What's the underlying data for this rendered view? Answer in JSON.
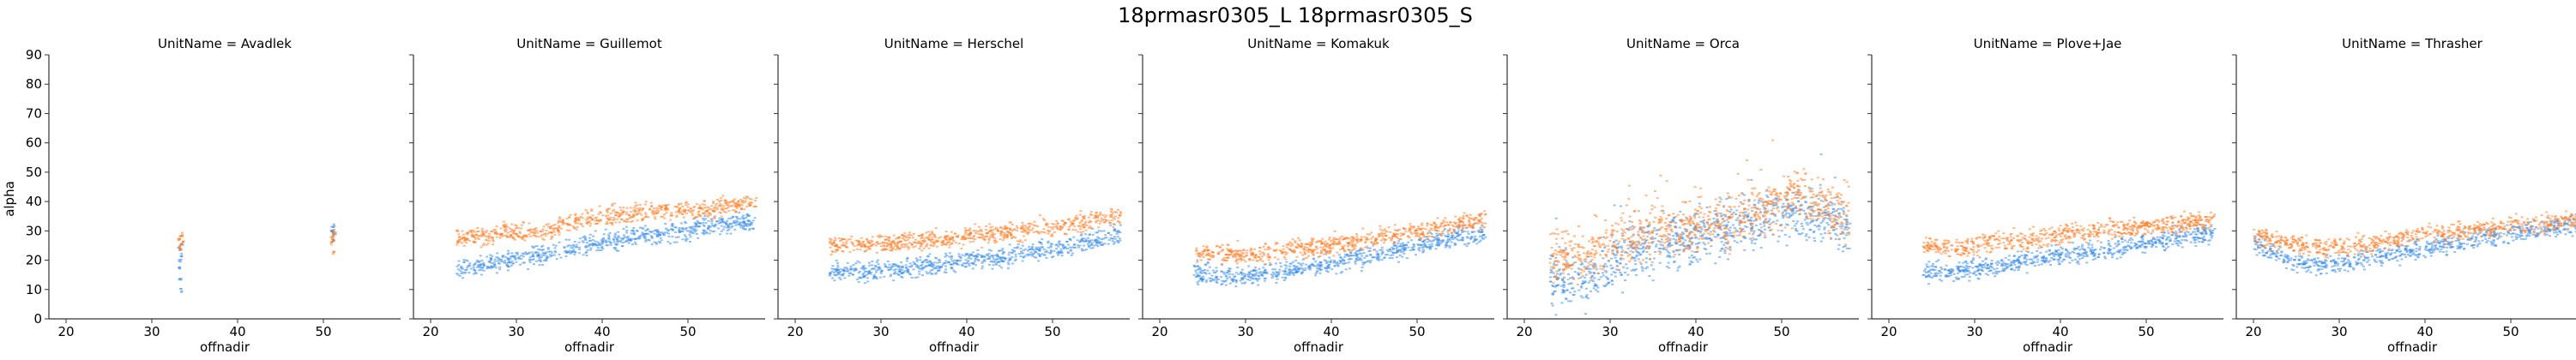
{
  "chart_data": {
    "type": "scatter",
    "title": "18prmasr0305_L 18prmasr0305_S",
    "xlabel": "offnadir",
    "ylabel": "alpha",
    "xlim": [
      18,
      59
    ],
    "ylim": [
      0,
      90
    ],
    "xticks": [
      20,
      30,
      40,
      50
    ],
    "yticks": [
      0,
      10,
      20,
      30,
      40,
      50,
      60,
      70,
      80,
      90
    ],
    "grid": false,
    "legend": "none",
    "series_colors": {
      "L": "#ff7f2a",
      "S": "#3a8de8"
    },
    "panels": [
      {
        "title": "UnitName = Avadlek",
        "L": [
          [
            33.2,
            27
          ],
          [
            33.4,
            28
          ],
          [
            33.6,
            26
          ],
          [
            33.3,
            25
          ],
          [
            33.5,
            29
          ],
          [
            33.4,
            24
          ],
          [
            51.0,
            28
          ],
          [
            51.2,
            29
          ],
          [
            51.1,
            27
          ],
          [
            51.3,
            30
          ],
          [
            51.0,
            26
          ],
          [
            51.2,
            23
          ]
        ],
        "S": [
          [
            33.2,
            24
          ],
          [
            33.4,
            22
          ],
          [
            33.3,
            20
          ],
          [
            33.5,
            26
          ],
          [
            33.3,
            14
          ],
          [
            33.4,
            10
          ],
          [
            33.2,
            18
          ],
          [
            51.0,
            31
          ],
          [
            51.2,
            32
          ],
          [
            51.1,
            30
          ],
          [
            51.3,
            29
          ],
          [
            51.1,
            27
          ]
        ]
      },
      {
        "title": "UnitName = Guillemot",
        "L": [
          [
            23,
            28
          ],
          [
            26,
            28
          ],
          [
            29,
            30
          ],
          [
            32,
            29
          ],
          [
            35,
            31
          ],
          [
            38,
            34
          ],
          [
            41,
            35
          ],
          [
            44,
            36
          ],
          [
            47,
            37
          ],
          [
            50,
            37
          ],
          [
            53,
            38
          ],
          [
            56,
            39
          ],
          [
            58,
            40
          ]
        ],
        "S": [
          [
            23,
            17
          ],
          [
            26,
            18
          ],
          [
            29,
            20
          ],
          [
            32,
            21
          ],
          [
            35,
            23
          ],
          [
            38,
            25
          ],
          [
            41,
            27
          ],
          [
            44,
            28
          ],
          [
            47,
            29
          ],
          [
            50,
            30
          ],
          [
            53,
            32
          ],
          [
            56,
            33
          ],
          [
            58,
            32
          ]
        ]
      },
      {
        "title": "UnitName = Herschel",
        "L": [
          [
            24,
            25
          ],
          [
            28,
            25
          ],
          [
            32,
            26
          ],
          [
            36,
            27
          ],
          [
            40,
            28
          ],
          [
            44,
            29
          ],
          [
            48,
            31
          ],
          [
            52,
            32
          ],
          [
            55,
            34
          ],
          [
            58,
            35
          ]
        ],
        "S": [
          [
            24,
            16
          ],
          [
            28,
            16
          ],
          [
            32,
            17
          ],
          [
            36,
            18
          ],
          [
            40,
            20
          ],
          [
            44,
            21
          ],
          [
            48,
            23
          ],
          [
            52,
            25
          ],
          [
            55,
            27
          ],
          [
            58,
            29
          ]
        ]
      },
      {
        "title": "UnitName = Komakuk",
        "L": [
          [
            24,
            23
          ],
          [
            28,
            22
          ],
          [
            32,
            22
          ],
          [
            36,
            24
          ],
          [
            40,
            25
          ],
          [
            44,
            27
          ],
          [
            48,
            29
          ],
          [
            52,
            31
          ],
          [
            55,
            33
          ],
          [
            58,
            34
          ]
        ],
        "S": [
          [
            24,
            16
          ],
          [
            28,
            14
          ],
          [
            32,
            15
          ],
          [
            36,
            17
          ],
          [
            40,
            19
          ],
          [
            44,
            21
          ],
          [
            48,
            24
          ],
          [
            52,
            26
          ],
          [
            55,
            28
          ],
          [
            58,
            29
          ]
        ]
      },
      {
        "title": "UnitName = Orca",
        "L": [
          [
            23,
            22
          ],
          [
            26,
            20
          ],
          [
            28,
            22
          ],
          [
            30,
            25
          ],
          [
            32,
            27
          ],
          [
            34,
            29
          ],
          [
            37,
            31
          ],
          [
            40,
            32
          ],
          [
            43,
            32
          ],
          [
            46,
            37
          ],
          [
            49,
            38
          ],
          [
            52,
            42
          ],
          [
            54,
            40
          ],
          [
            56,
            37
          ],
          [
            58,
            35
          ]
        ],
        "S": [
          [
            23,
            14
          ],
          [
            26,
            12
          ],
          [
            28,
            15
          ],
          [
            30,
            18
          ],
          [
            32,
            22
          ],
          [
            34,
            25
          ],
          [
            37,
            27
          ],
          [
            40,
            28
          ],
          [
            43,
            29
          ],
          [
            46,
            33
          ],
          [
            49,
            35
          ],
          [
            52,
            37
          ],
          [
            54,
            36
          ],
          [
            56,
            33
          ],
          [
            58,
            30
          ]
        ]
      },
      {
        "title": "UnitName = Plove+Jae",
        "L": [
          [
            24,
            25
          ],
          [
            28,
            24
          ],
          [
            32,
            26
          ],
          [
            36,
            27
          ],
          [
            40,
            29
          ],
          [
            44,
            30
          ],
          [
            48,
            31
          ],
          [
            52,
            32
          ],
          [
            55,
            33
          ],
          [
            58,
            34
          ]
        ],
        "S": [
          [
            24,
            16
          ],
          [
            28,
            16
          ],
          [
            32,
            18
          ],
          [
            36,
            20
          ],
          [
            40,
            22
          ],
          [
            44,
            23
          ],
          [
            48,
            25
          ],
          [
            52,
            27
          ],
          [
            55,
            28
          ],
          [
            58,
            29
          ]
        ]
      },
      {
        "title": "UnitName = Thrasher",
        "L": [
          [
            20,
            28
          ],
          [
            24,
            26
          ],
          [
            28,
            24
          ],
          [
            32,
            25
          ],
          [
            36,
            27
          ],
          [
            40,
            29
          ],
          [
            44,
            30
          ],
          [
            48,
            31
          ],
          [
            52,
            32
          ],
          [
            55,
            33
          ],
          [
            58,
            34
          ]
        ],
        "S": [
          [
            20,
            26
          ],
          [
            24,
            20
          ],
          [
            28,
            18
          ],
          [
            32,
            20
          ],
          [
            36,
            22
          ],
          [
            40,
            24
          ],
          [
            44,
            26
          ],
          [
            48,
            28
          ],
          [
            52,
            30
          ],
          [
            55,
            31
          ],
          [
            58,
            32
          ]
        ]
      }
    ]
  }
}
